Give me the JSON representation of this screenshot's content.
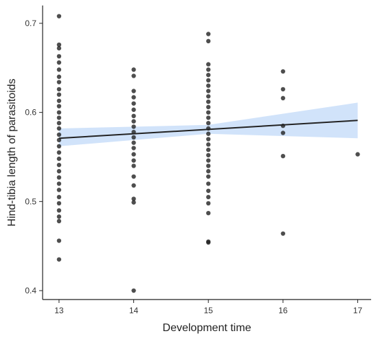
{
  "chart_data": {
    "type": "scatter",
    "title": "",
    "xlabel": "Development time",
    "ylabel": "Hind-tibia length of parasitoids",
    "xlim": [
      12.78,
      17.18
    ],
    "ylim": [
      0.39,
      0.72
    ],
    "xticks": [
      13,
      14,
      15,
      16,
      17
    ],
    "yticks": [
      0.4,
      0.5,
      0.6,
      0.7
    ],
    "xtick_labels": [
      "13",
      "14",
      "15",
      "16",
      "17"
    ],
    "ytick_labels": [
      "0.4",
      "0.5",
      "0.6",
      "0.7"
    ],
    "grid": false,
    "legend": "none",
    "colors": {
      "points": "#222222",
      "line": "#222222",
      "band": "#b8d4f7"
    },
    "points": [
      {
        "x": 13,
        "y": 0.708
      },
      {
        "x": 13,
        "y": 0.676
      },
      {
        "x": 13,
        "y": 0.672
      },
      {
        "x": 13,
        "y": 0.663
      },
      {
        "x": 13,
        "y": 0.656
      },
      {
        "x": 13,
        "y": 0.648
      },
      {
        "x": 13,
        "y": 0.64
      },
      {
        "x": 13,
        "y": 0.634
      },
      {
        "x": 13,
        "y": 0.626
      },
      {
        "x": 13,
        "y": 0.62
      },
      {
        "x": 13,
        "y": 0.613
      },
      {
        "x": 13,
        "y": 0.607
      },
      {
        "x": 13,
        "y": 0.6
      },
      {
        "x": 13,
        "y": 0.594
      },
      {
        "x": 13,
        "y": 0.588
      },
      {
        "x": 13,
        "y": 0.582
      },
      {
        "x": 13,
        "y": 0.575
      },
      {
        "x": 13,
        "y": 0.569
      },
      {
        "x": 13,
        "y": 0.562
      },
      {
        "x": 13,
        "y": 0.555
      },
      {
        "x": 13,
        "y": 0.548
      },
      {
        "x": 13,
        "y": 0.541
      },
      {
        "x": 13,
        "y": 0.534
      },
      {
        "x": 13,
        "y": 0.527
      },
      {
        "x": 13,
        "y": 0.52
      },
      {
        "x": 13,
        "y": 0.513
      },
      {
        "x": 13,
        "y": 0.505
      },
      {
        "x": 13,
        "y": 0.498
      },
      {
        "x": 13,
        "y": 0.49
      },
      {
        "x": 13,
        "y": 0.483
      },
      {
        "x": 13,
        "y": 0.478
      },
      {
        "x": 13,
        "y": 0.456
      },
      {
        "x": 13,
        "y": 0.435
      },
      {
        "x": 14,
        "y": 0.648
      },
      {
        "x": 14,
        "y": 0.641
      },
      {
        "x": 14,
        "y": 0.624
      },
      {
        "x": 14,
        "y": 0.617
      },
      {
        "x": 14,
        "y": 0.61
      },
      {
        "x": 14,
        "y": 0.603
      },
      {
        "x": 14,
        "y": 0.596
      },
      {
        "x": 14,
        "y": 0.59
      },
      {
        "x": 14,
        "y": 0.584
      },
      {
        "x": 14,
        "y": 0.578
      },
      {
        "x": 14,
        "y": 0.572
      },
      {
        "x": 14,
        "y": 0.566
      },
      {
        "x": 14,
        "y": 0.56
      },
      {
        "x": 14,
        "y": 0.553
      },
      {
        "x": 14,
        "y": 0.546
      },
      {
        "x": 14,
        "y": 0.54
      },
      {
        "x": 14,
        "y": 0.528
      },
      {
        "x": 14,
        "y": 0.518
      },
      {
        "x": 14,
        "y": 0.503
      },
      {
        "x": 14,
        "y": 0.499
      },
      {
        "x": 14,
        "y": 0.4
      },
      {
        "x": 15,
        "y": 0.688
      },
      {
        "x": 15,
        "y": 0.68
      },
      {
        "x": 15,
        "y": 0.654
      },
      {
        "x": 15,
        "y": 0.648
      },
      {
        "x": 15,
        "y": 0.642
      },
      {
        "x": 15,
        "y": 0.636
      },
      {
        "x": 15,
        "y": 0.63
      },
      {
        "x": 15,
        "y": 0.624
      },
      {
        "x": 15,
        "y": 0.618
      },
      {
        "x": 15,
        "y": 0.612
      },
      {
        "x": 15,
        "y": 0.606
      },
      {
        "x": 15,
        "y": 0.6
      },
      {
        "x": 15,
        "y": 0.594
      },
      {
        "x": 15,
        "y": 0.588
      },
      {
        "x": 15,
        "y": 0.582
      },
      {
        "x": 15,
        "y": 0.576
      },
      {
        "x": 15,
        "y": 0.57
      },
      {
        "x": 15,
        "y": 0.564
      },
      {
        "x": 15,
        "y": 0.558
      },
      {
        "x": 15,
        "y": 0.552
      },
      {
        "x": 15,
        "y": 0.546
      },
      {
        "x": 15,
        "y": 0.54
      },
      {
        "x": 15,
        "y": 0.534
      },
      {
        "x": 15,
        "y": 0.528
      },
      {
        "x": 15,
        "y": 0.52
      },
      {
        "x": 15,
        "y": 0.512
      },
      {
        "x": 15,
        "y": 0.505
      },
      {
        "x": 15,
        "y": 0.498
      },
      {
        "x": 15,
        "y": 0.487
      },
      {
        "x": 15,
        "y": 0.455
      },
      {
        "x": 15,
        "y": 0.454
      },
      {
        "x": 16,
        "y": 0.646
      },
      {
        "x": 16,
        "y": 0.626
      },
      {
        "x": 16,
        "y": 0.616
      },
      {
        "x": 16,
        "y": 0.585
      },
      {
        "x": 16,
        "y": 0.577
      },
      {
        "x": 16,
        "y": 0.551
      },
      {
        "x": 16,
        "y": 0.464
      },
      {
        "x": 17,
        "y": 0.553
      }
    ],
    "trend_line": {
      "x": [
        13,
        17
      ],
      "y": [
        0.571,
        0.591
      ]
    },
    "confidence_band": {
      "x": [
        13,
        15,
        17
      ],
      "lower": [
        0.562,
        0.576,
        0.571
      ],
      "upper": [
        0.582,
        0.586,
        0.611
      ]
    }
  }
}
